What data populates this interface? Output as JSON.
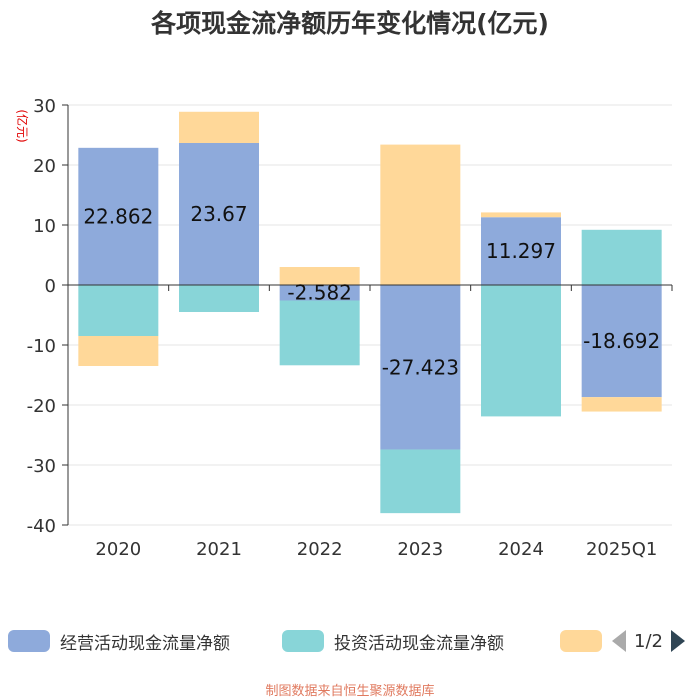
{
  "title": "各项现金流净额历年变化情况(亿元)",
  "chart_data": {
    "type": "bar",
    "stacked": true,
    "title": "各项现金流净额历年变化情况(亿元)",
    "ylabel": "(亿元)",
    "ylim": [
      -40,
      30
    ],
    "yticks": [
      30,
      20,
      10,
      0,
      -10,
      -20,
      -30,
      -40
    ],
    "categories": [
      "2020",
      "2021",
      "2022",
      "2023",
      "2024",
      "2025Q1"
    ],
    "series": [
      {
        "name": "经营活动现金流量净额",
        "color": "#8eaadb",
        "values": [
          22.862,
          23.67,
          -2.582,
          -27.423,
          11.297,
          -18.692
        ]
      },
      {
        "name": "投资活动现金流量净额",
        "color": "#88d5d8",
        "values": [
          -8.5,
          -4.5,
          -10.8,
          -10.6,
          -21.9,
          9.2
        ]
      },
      {
        "name": "",
        "color": "#ffd899",
        "values": [
          -5.0,
          5.2,
          3.0,
          23.4,
          0.8,
          -2.4
        ]
      }
    ],
    "data_labels": [
      "22.862",
      "23.67",
      "-2.582",
      "-27.423",
      "11.297",
      "-18.692"
    ]
  },
  "legend": {
    "items": [
      {
        "label": "经营活动现金流量净额",
        "color": "#8eaadb"
      },
      {
        "label": "投资活动现金流量净额",
        "color": "#88d5d8"
      },
      {
        "label": "",
        "color": "#ffd899"
      }
    ],
    "page": "1/2"
  },
  "source": "制图数据来自恒生聚源数据库"
}
